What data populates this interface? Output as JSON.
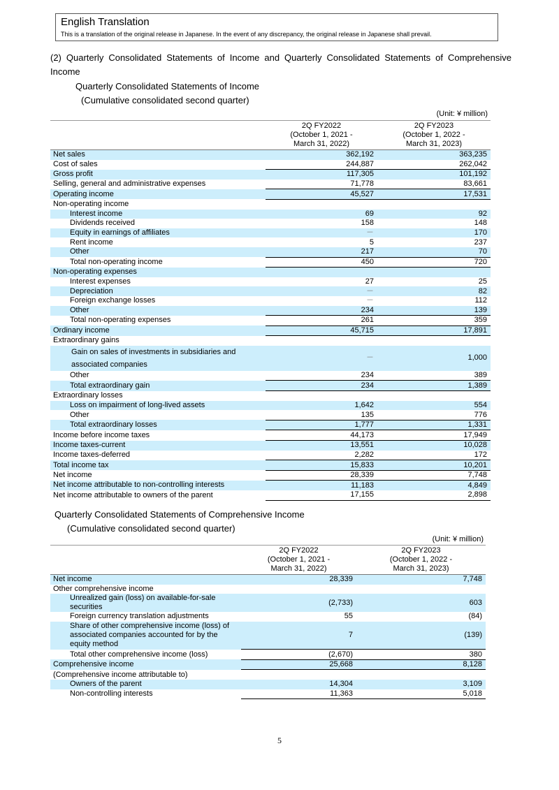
{
  "banner": {
    "title": "English Translation",
    "note": "This is a translation of the original release in Japanese. In the event of any discrepancy, the original release in Japanese shall prevail."
  },
  "section_title": "(2) Quarterly Consolidated Statements of Income and Quarterly Consolidated Statements of Comprehensive Income",
  "income": {
    "title": "Quarterly Consolidated Statements of Income",
    "subtitle": "(Cumulative consolidated second quarter)",
    "unit": "(Unit: ¥ million)",
    "columns": [
      {
        "l1": "2Q FY2022",
        "l2": "(October 1, 2021 -",
        "l3": "March 31, 2022)"
      },
      {
        "l1": "2Q FY2023",
        "l2": "(October 1, 2022 -",
        "l3": "March 31, 2023)"
      }
    ],
    "rows": [
      {
        "label": "Net sales",
        "v1": "362,192",
        "v2": "363,235"
      },
      {
        "label": "Cost of sales",
        "v1": "244,887",
        "v2": "262,042"
      },
      {
        "label": "Gross profit",
        "v1": "117,305",
        "v2": "101,192"
      },
      {
        "label": "Selling, general and administrative expenses",
        "v1": "71,778",
        "v2": "83,661"
      },
      {
        "label": "Operating income",
        "v1": "45,527",
        "v2": "17,531"
      },
      {
        "label": "Non-operating income",
        "v1": "",
        "v2": ""
      },
      {
        "label": "Interest income",
        "v1": "69",
        "v2": "92"
      },
      {
        "label": "Dividends received",
        "v1": "158",
        "v2": "148"
      },
      {
        "label": "Equity in earnings of affiliates",
        "v1": "－",
        "v2": "170"
      },
      {
        "label": "Rent income",
        "v1": "5",
        "v2": "237"
      },
      {
        "label": "Other",
        "v1": "217",
        "v2": "70"
      },
      {
        "label": "Total non-operating income",
        "v1": "450",
        "v2": "720"
      },
      {
        "label": "Non-operating expenses",
        "v1": "",
        "v2": ""
      },
      {
        "label": "Interest expenses",
        "v1": "27",
        "v2": "25"
      },
      {
        "label": "Depreciation",
        "v1": "－",
        "v2": "82"
      },
      {
        "label": "Foreign exchange losses",
        "v1": "－",
        "v2": "112"
      },
      {
        "label": "Other",
        "v1": "234",
        "v2": "139"
      },
      {
        "label": "Total non-operating expenses",
        "v1": "261",
        "v2": "359"
      },
      {
        "label": "Ordinary income",
        "v1": "45,715",
        "v2": "17,891"
      },
      {
        "label": "Extraordinary gains",
        "v1": "",
        "v2": ""
      },
      {
        "label": "Gain on sales of investments in subsidiaries and associated companies",
        "v1": "－",
        "v2": "1,000"
      },
      {
        "label": "Other",
        "v1": "234",
        "v2": "389"
      },
      {
        "label": "Total extraordinary gain",
        "v1": "234",
        "v2": "1,389"
      },
      {
        "label": "Extraordinary losses",
        "v1": "",
        "v2": ""
      },
      {
        "label": "Loss on impairment of long-lived assets",
        "v1": "1,642",
        "v2": "554"
      },
      {
        "label": "Other",
        "v1": "135",
        "v2": "776"
      },
      {
        "label": "Total extraordinary losses",
        "v1": "1,777",
        "v2": "1,331"
      },
      {
        "label": "Income before income taxes",
        "v1": "44,173",
        "v2": "17,949"
      },
      {
        "label": "Income taxes-current",
        "v1": "13,551",
        "v2": "10,028"
      },
      {
        "label": "Income taxes-deferred",
        "v1": "2,282",
        "v2": "172"
      },
      {
        "label": "Total income tax",
        "v1": "15,833",
        "v2": "10,201"
      },
      {
        "label": "Net income",
        "v1": "28,339",
        "v2": "7,748"
      },
      {
        "label": "Net income attributable to non-controlling interests",
        "v1": "11,183",
        "v2": "4,849"
      },
      {
        "label": "Net income attributable to owners of the parent",
        "v1": "17,155",
        "v2": "2,898"
      }
    ]
  },
  "comprehensive": {
    "title": "Quarterly Consolidated Statements of Comprehensive Income",
    "subtitle": "(Cumulative consolidated second quarter)",
    "unit": "(Unit: ¥ million)",
    "columns": [
      {
        "l1": "2Q FY2022",
        "l2": "(October 1, 2021 -",
        "l3": "March 31, 2022)"
      },
      {
        "l1": "2Q FY2023",
        "l2": "(October 1, 2022 -",
        "l3": "March 31, 2023)"
      }
    ],
    "rows": [
      {
        "label": "Net income",
        "v1": "28,339",
        "v2": "7,748"
      },
      {
        "label": "Other comprehensive income",
        "v1": "",
        "v2": ""
      },
      {
        "label": "Unrealized gain (loss) on available-for-sale securities",
        "v1": "(2,733)",
        "v2": "603"
      },
      {
        "label": "Foreign currency translation adjustments",
        "v1": "55",
        "v2": "(84)"
      },
      {
        "label": "Share of other comprehensive income (loss) of associated companies accounted for by the equity method",
        "v1": "7",
        "v2": "(139)"
      },
      {
        "label": "Total other comprehensive income (loss)",
        "v1": "(2,670)",
        "v2": "380"
      },
      {
        "label": "Comprehensive income",
        "v1": "25,668",
        "v2": "8,128"
      },
      {
        "label": "(Comprehensive income attributable to)",
        "v1": "",
        "v2": ""
      },
      {
        "label": "Owners of the parent",
        "v1": "14,304",
        "v2": "3,109"
      },
      {
        "label": "Non-controlling interests",
        "v1": "11,363",
        "v2": "5,018"
      }
    ]
  },
  "page_number": "5"
}
